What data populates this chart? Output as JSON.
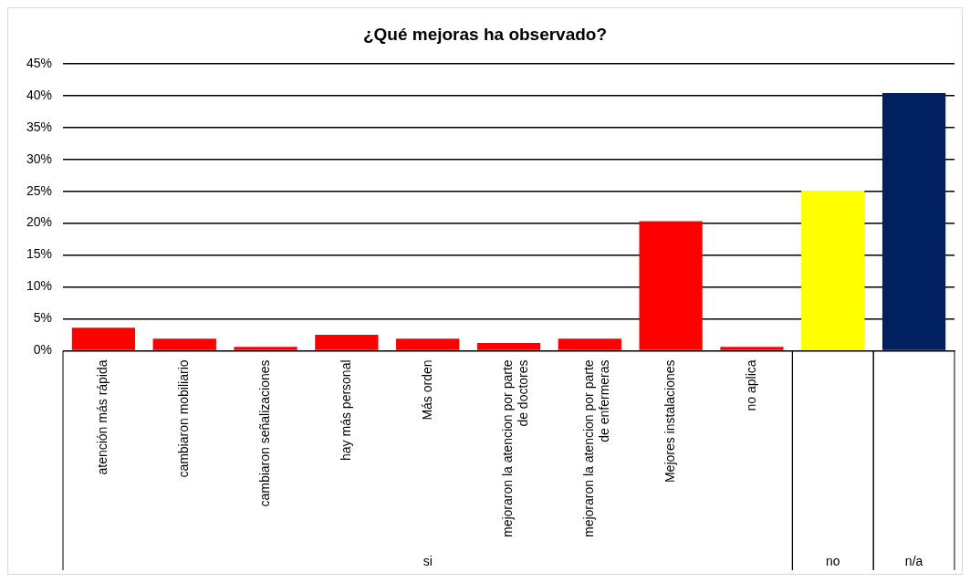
{
  "chart_data": {
    "type": "bar",
    "title": "¿Qué mejoras ha observado?",
    "categories": [
      "atención más rápida",
      "cambiaron mobiliario",
      "cambiaron señalizaciones",
      "hay más personal",
      "Más orden",
      "mejoraron la atencion por parte\nde doctores",
      "mejoraron la atencion por parte\nde enfermeras",
      "Mejores instalaciones",
      "no aplica",
      null,
      null
    ],
    "values": [
      3.6,
      1.9,
      0.6,
      2.5,
      1.9,
      1.2,
      1.9,
      20.3,
      0.6,
      25.1,
      40.4
    ],
    "colors": [
      "#ff0000",
      "#ff0000",
      "#ff0000",
      "#ff0000",
      "#ff0000",
      "#ff0000",
      "#ff0000",
      "#ff0000",
      "#ff0000",
      "#ffff00",
      "#002060"
    ],
    "ylim": [
      0,
      45
    ],
    "yticks": [
      {
        "value": 0,
        "label": "0%"
      },
      {
        "value": 5,
        "label": "5%"
      },
      {
        "value": 10,
        "label": "10%"
      },
      {
        "value": 15,
        "label": "15%"
      },
      {
        "value": 20,
        "label": "20%"
      },
      {
        "value": 25,
        "label": "25%"
      },
      {
        "value": 30,
        "label": "30%"
      },
      {
        "value": 35,
        "label": "35%"
      },
      {
        "value": 40,
        "label": "40%"
      },
      {
        "value": 45,
        "label": "45%"
      }
    ],
    "grid": "y",
    "legend": false,
    "annotations": [
      "si",
      "no",
      "n/a"
    ]
  }
}
